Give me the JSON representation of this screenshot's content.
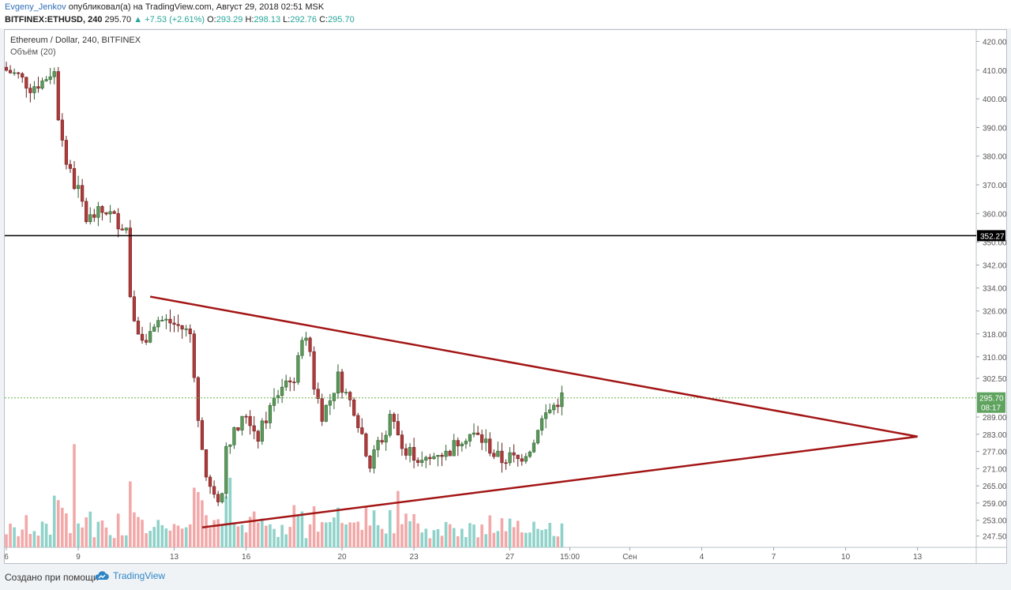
{
  "header": {
    "author": "Evgeny_Jenkov",
    "published_text": "опубликовал(а) на TradingView.com, Август 29, 2018 02:51 MSK",
    "symbol": "BITFINEX:ETHUSD, 240",
    "last": "295.70",
    "change": "▲ +7.53 (+2.61%)",
    "o_label": "O:",
    "o": "293.29",
    "h_label": "H:",
    "h": "298.13",
    "l_label": "L:",
    "l": "292.76",
    "c_label": "C:",
    "c": "295.70"
  },
  "legend": {
    "title": "Ethereum / Dollar, 240, BITFINEX",
    "volume": "Объём (20)"
  },
  "footer": {
    "made_with": "Создано при помощи",
    "brand": "TradingView"
  },
  "colors": {
    "up": "#5a9b5a",
    "down": "#b33a3a",
    "vol_up": "#8fd2c9",
    "vol_down": "#f2a8a8",
    "triangle": "#a31515",
    "hline": "#000000",
    "last_price_line": "#6ab04c"
  },
  "chart_data": {
    "type": "candlestick",
    "title": "Ethereum / Dollar, 240, BITFINEX",
    "y_range": [
      243,
      424
    ],
    "y_ticks": [
      420,
      410,
      400,
      390,
      380,
      370,
      360,
      350,
      342,
      334,
      326,
      318,
      310,
      302.5,
      289,
      283,
      277,
      271,
      265,
      259,
      253,
      247.5
    ],
    "y_tick_labels": [
      "420.00",
      "410.00",
      "400.00",
      "390.00",
      "380.00",
      "370.00",
      "360.00",
      "350.00",
      "342.00",
      "334.00",
      "326.00",
      "318.00",
      "310.00",
      "302.50",
      "289.00",
      "283.00",
      "277.00",
      "271.00",
      "265.00",
      "259.00",
      "253.00",
      "247.50"
    ],
    "x_range_bars": [
      0,
      270
    ],
    "x_ticks": [
      {
        "label": "6",
        "bar": 0
      },
      {
        "label": "9",
        "bar": 18
      },
      {
        "label": "13",
        "bar": 42
      },
      {
        "label": "16",
        "bar": 60
      },
      {
        "label": "20",
        "bar": 84
      },
      {
        "label": "23",
        "bar": 102
      },
      {
        "label": "27",
        "bar": 126
      },
      {
        "label": "15:00",
        "bar": 141
      },
      {
        "label": "Сен",
        "bar": 156
      },
      {
        "label": "4",
        "bar": 174
      },
      {
        "label": "7",
        "bar": 192
      },
      {
        "label": "10",
        "bar": 210
      },
      {
        "label": "13",
        "bar": 228
      }
    ],
    "horizontal_line": {
      "value": 352.27,
      "label": "352.27"
    },
    "last_price": {
      "value": 295.7,
      "label": "295.70",
      "countdown": "08:17"
    },
    "triangle": {
      "upper": [
        [
          36,
          331.0
        ],
        [
          228,
          282.2
        ]
      ],
      "lower": [
        [
          49,
          250.5
        ],
        [
          228,
          282.2
        ]
      ]
    },
    "close_path": [
      [
        0,
        410
      ],
      [
        3,
        408
      ],
      [
        6,
        404
      ],
      [
        9,
        406
      ],
      [
        11,
        409
      ],
      [
        12,
        409
      ],
      [
        13,
        394
      ],
      [
        15,
        378
      ],
      [
        17,
        370
      ],
      [
        18,
        368
      ],
      [
        20,
        358
      ],
      [
        23,
        360
      ],
      [
        25,
        361
      ],
      [
        28,
        357
      ],
      [
        30,
        355
      ],
      [
        31,
        332
      ],
      [
        33,
        318
      ],
      [
        35,
        314
      ],
      [
        36,
        321
      ],
      [
        38,
        323
      ],
      [
        41,
        322
      ],
      [
        44,
        320
      ],
      [
        46,
        318
      ],
      [
        47,
        305
      ],
      [
        48,
        287
      ],
      [
        50,
        268
      ],
      [
        52,
        260
      ],
      [
        54,
        262
      ],
      [
        55,
        280
      ],
      [
        58,
        285
      ],
      [
        60,
        290
      ],
      [
        63,
        282
      ],
      [
        66,
        292
      ],
      [
        69,
        300
      ],
      [
        71,
        303
      ],
      [
        72,
        299
      ],
      [
        74,
        318
      ],
      [
        76,
        312
      ],
      [
        77,
        300
      ],
      [
        79,
        290
      ],
      [
        81,
        295
      ],
      [
        83,
        303
      ],
      [
        85,
        297
      ],
      [
        87,
        292
      ],
      [
        89,
        283
      ],
      [
        91,
        272
      ],
      [
        93,
        280
      ],
      [
        95,
        283
      ],
      [
        96,
        290
      ],
      [
        98,
        283
      ],
      [
        100,
        278
      ],
      [
        102,
        276
      ],
      [
        104,
        273
      ],
      [
        106,
        274
      ],
      [
        108,
        277
      ],
      [
        110,
        276
      ],
      [
        112,
        279
      ],
      [
        114,
        282
      ],
      [
        116,
        283
      ],
      [
        118,
        282
      ],
      [
        120,
        280
      ],
      [
        122,
        276
      ],
      [
        124,
        274
      ],
      [
        126,
        275
      ],
      [
        128,
        274
      ],
      [
        130,
        277
      ],
      [
        132,
        280
      ],
      [
        133,
        286
      ],
      [
        135,
        290
      ],
      [
        137,
        293
      ],
      [
        139,
        296
      ]
    ],
    "volume_profile": "tall bursts at bar 12, 17, 48, 56, 98, 100"
  }
}
